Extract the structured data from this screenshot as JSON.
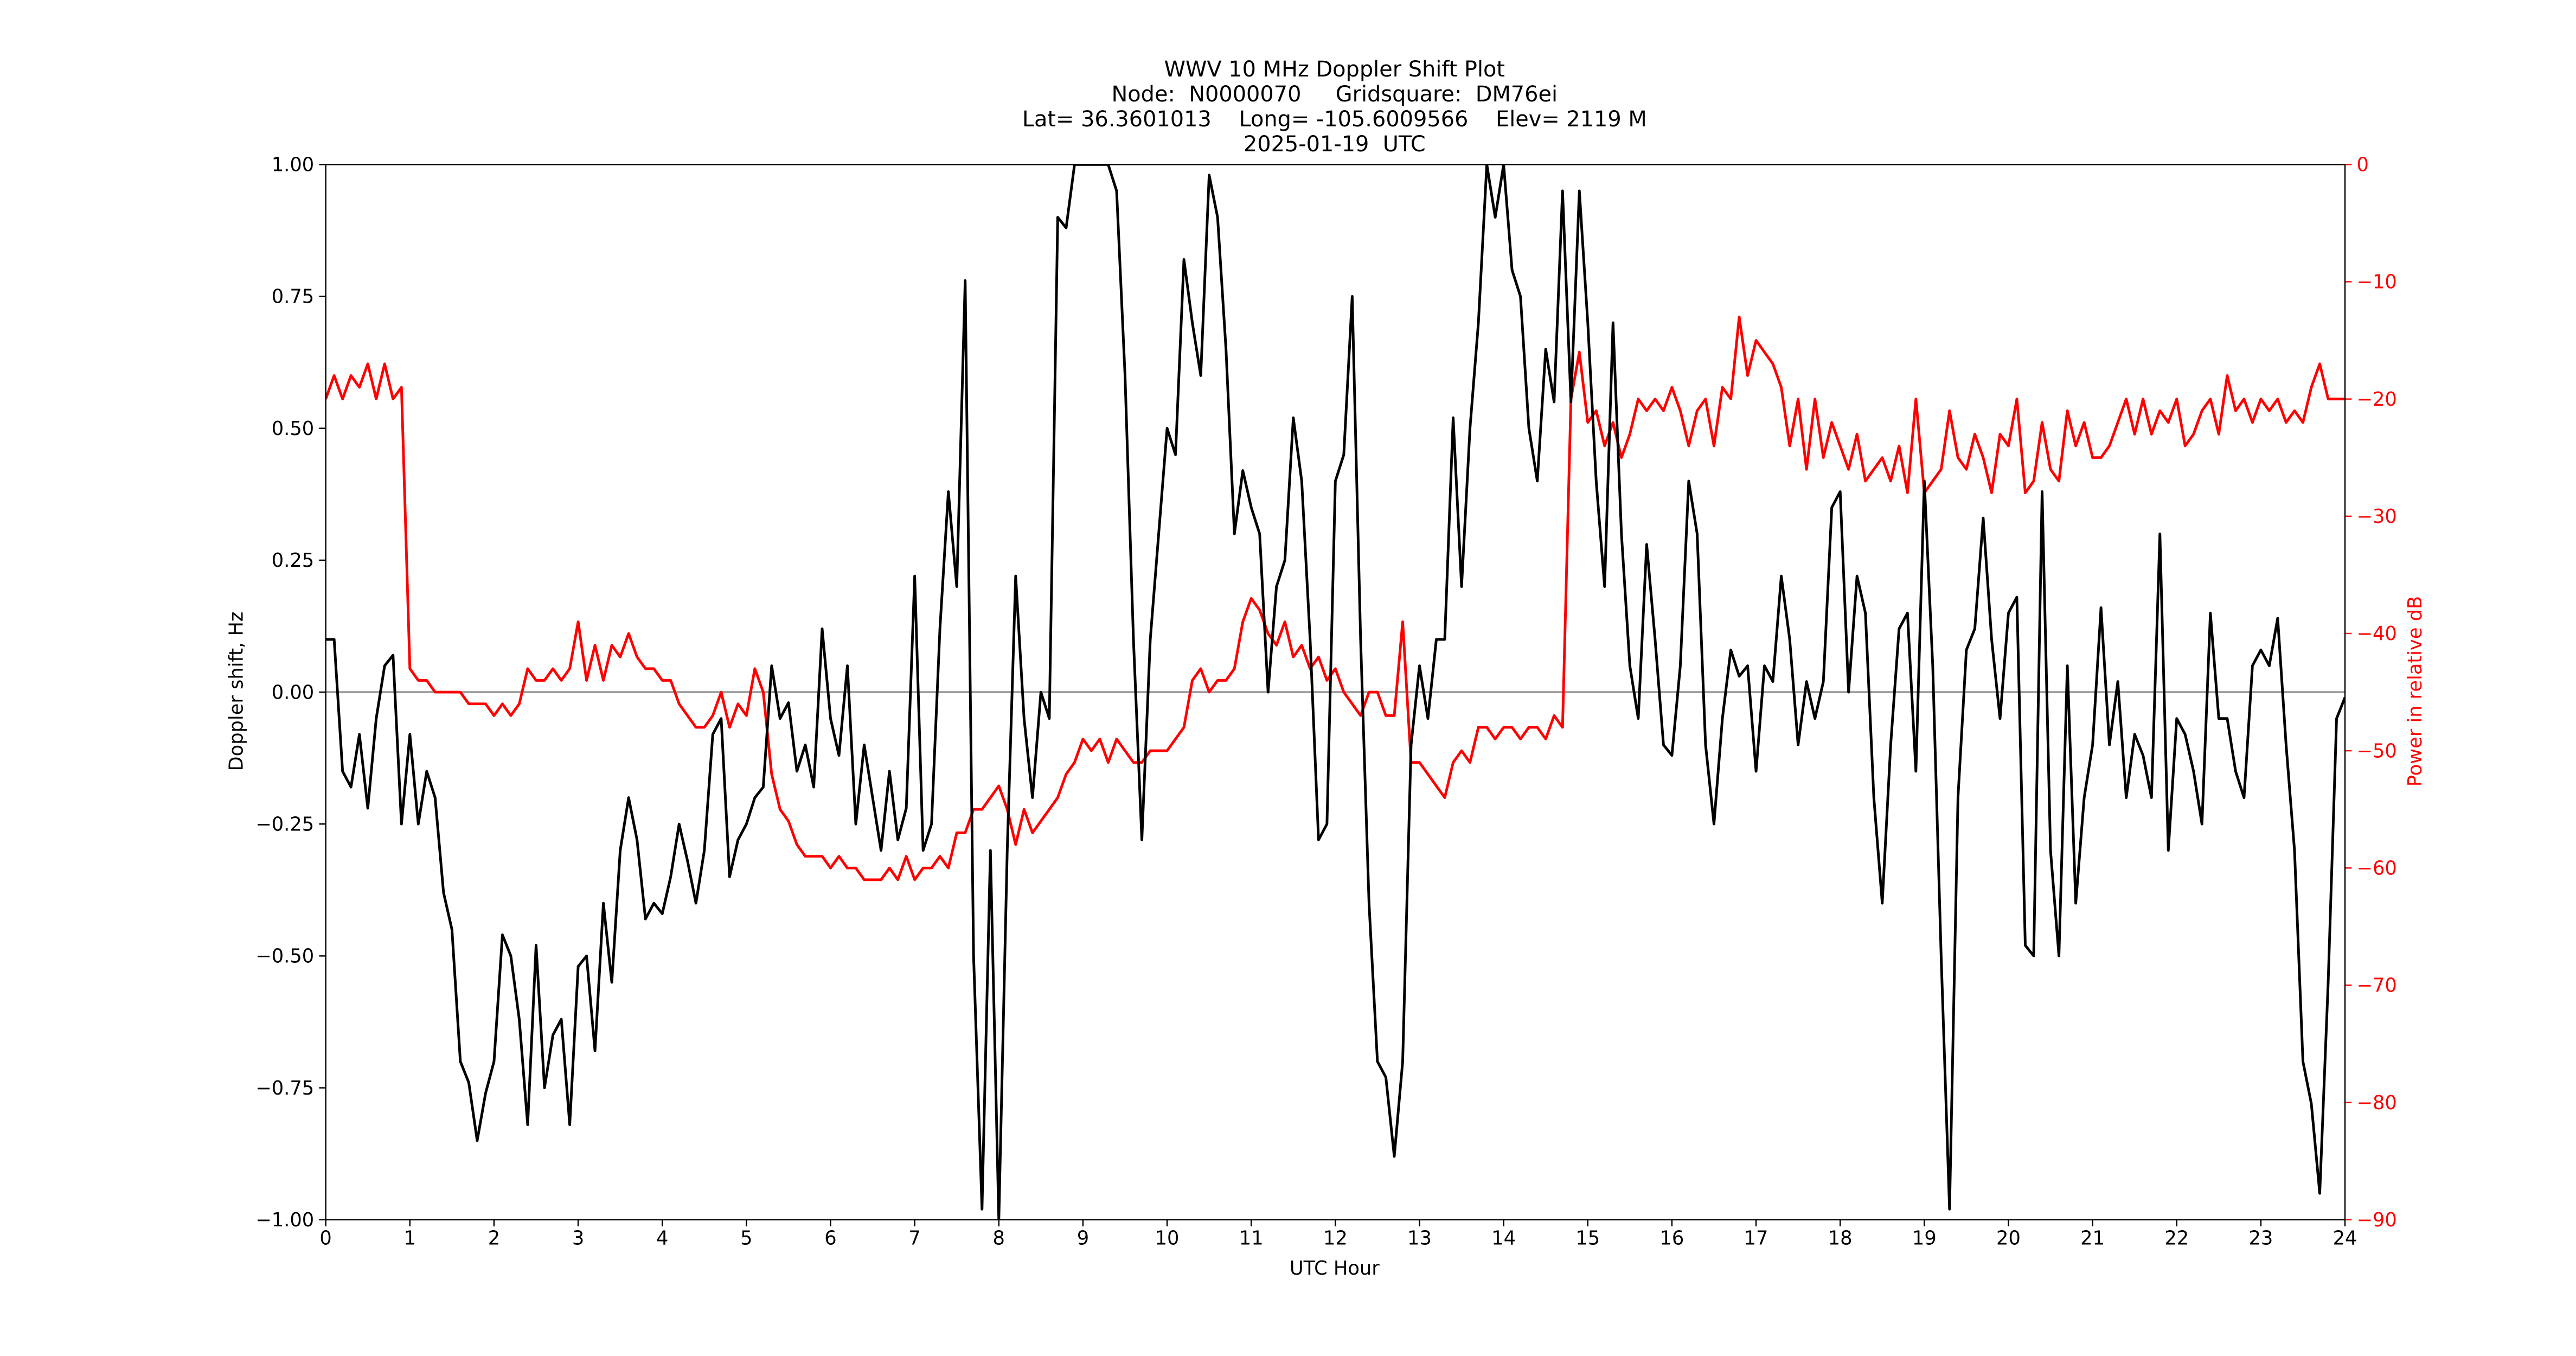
{
  "chart_data": {
    "type": "line",
    "title": "WWV 10 MHz Doppler Shift Plot",
    "subtitle": [
      "Node:  N0000070     Gridsquare:  DM76ei",
      "Lat= 36.3601013    Long= -105.6009566    Elev= 2119 M",
      "2025-01-19  UTC"
    ],
    "xlabel": "UTC Hour",
    "ylabel": "Doppler shift, Hz",
    "y2label": "Power in relative dB",
    "xlim": [
      0,
      24
    ],
    "ylim": [
      -1,
      1
    ],
    "y2lim": [
      -90,
      0
    ],
    "xticks": [
      0,
      1,
      2,
      3,
      4,
      5,
      6,
      7,
      8,
      9,
      10,
      11,
      12,
      13,
      14,
      15,
      16,
      17,
      18,
      19,
      20,
      21,
      22,
      23,
      24
    ],
    "yticks": [
      {
        "value": -1,
        "label": "−1.00"
      },
      {
        "value": -0.75,
        "label": "−0.75"
      },
      {
        "value": -0.5,
        "label": "−0.50"
      },
      {
        "value": -0.25,
        "label": "−0.25"
      },
      {
        "value": 0,
        "label": "0.00"
      },
      {
        "value": 0.25,
        "label": "0.25"
      },
      {
        "value": 0.5,
        "label": "0.50"
      },
      {
        "value": 0.75,
        "label": "0.75"
      },
      {
        "value": 1,
        "label": "1.00"
      }
    ],
    "y2ticks": [
      {
        "value": -90,
        "label": "−90"
      },
      {
        "value": -80,
        "label": "−80"
      },
      {
        "value": -70,
        "label": "−70"
      },
      {
        "value": -60,
        "label": "−60"
      },
      {
        "value": -50,
        "label": "−50"
      },
      {
        "value": -40,
        "label": "−40"
      },
      {
        "value": -30,
        "label": "−30"
      },
      {
        "value": -20,
        "label": "−20"
      },
      {
        "value": -10,
        "label": "−10"
      },
      0
    ],
    "y2color": "#ff0000",
    "reference_line": 0,
    "reference_color": "#999999",
    "x": [
      0,
      0.1,
      0.2,
      0.3,
      0.4,
      0.5,
      0.6,
      0.7,
      0.8,
      0.9,
      1,
      1.1,
      1.2,
      1.3,
      1.4,
      1.5,
      1.6,
      1.7,
      1.8,
      1.9,
      2,
      2.1,
      2.2,
      2.3,
      2.4,
      2.5,
      2.6,
      2.7,
      2.8,
      2.9,
      3,
      3.1,
      3.2,
      3.3,
      3.4,
      3.5,
      3.6,
      3.7,
      3.8,
      3.9,
      4,
      4.1,
      4.2,
      4.3,
      4.4,
      4.5,
      4.6,
      4.7,
      4.8,
      4.9,
      5,
      5.1,
      5.2,
      5.3,
      5.4,
      5.5,
      5.6,
      5.7,
      5.8,
      5.9,
      6,
      6.1,
      6.2,
      6.3,
      6.4,
      6.5,
      6.6,
      6.7,
      6.8,
      6.9,
      7,
      7.1,
      7.2,
      7.3,
      7.4,
      7.5,
      7.6,
      7.7,
      7.8,
      7.9,
      8,
      8.1,
      8.2,
      8.3,
      8.4,
      8.5,
      8.6,
      8.7,
      8.8,
      8.9,
      9,
      9.1,
      9.2,
      9.3,
      9.4,
      9.5,
      9.6,
      9.7,
      9.8,
      9.9,
      10,
      10.1,
      10.2,
      10.3,
      10.4,
      10.5,
      10.6,
      10.7,
      10.8,
      10.9,
      11,
      11.1,
      11.2,
      11.3,
      11.4,
      11.5,
      11.6,
      11.7,
      11.8,
      11.9,
      12,
      12.1,
      12.2,
      12.3,
      12.4,
      12.5,
      12.6,
      12.7,
      12.8,
      12.9,
      13,
      13.1,
      13.2,
      13.3,
      13.4,
      13.5,
      13.6,
      13.7,
      13.8,
      13.9,
      14,
      14.1,
      14.2,
      14.3,
      14.4,
      14.5,
      14.6,
      14.7,
      14.8,
      14.9,
      15,
      15.1,
      15.2,
      15.3,
      15.4,
      15.5,
      15.6,
      15.7,
      15.8,
      15.9,
      16,
      16.1,
      16.2,
      16.3,
      16.4,
      16.5,
      16.6,
      16.7,
      16.8,
      16.9,
      17,
      17.1,
      17.2,
      17.3,
      17.4,
      17.5,
      17.6,
      17.7,
      17.8,
      17.9,
      18,
      18.1,
      18.2,
      18.3,
      18.4,
      18.5,
      18.6,
      18.7,
      18.8,
      18.9,
      19,
      19.1,
      19.2,
      19.3,
      19.4,
      19.5,
      19.6,
      19.7,
      19.8,
      19.9,
      20,
      20.1,
      20.2,
      20.3,
      20.4,
      20.5,
      20.6,
      20.7,
      20.8,
      20.9,
      21,
      21.1,
      21.2,
      21.3,
      21.4,
      21.5,
      21.6,
      21.7,
      21.8,
      21.9,
      22,
      22.1,
      22.2,
      22.3,
      22.4,
      22.5,
      22.6,
      22.7,
      22.8,
      22.9,
      23,
      23.1,
      23.2,
      23.3,
      23.4,
      23.5,
      23.6,
      23.7,
      23.8,
      23.9,
      24
    ],
    "series": [
      {
        "color": "#000000",
        "values": [
          0.1,
          0.1,
          -0.15,
          -0.18,
          -0.08,
          -0.22,
          -0.05,
          0.05,
          0.07,
          -0.25,
          -0.08,
          -0.25,
          -0.15,
          -0.2,
          -0.38,
          -0.45,
          -0.7,
          -0.74,
          -0.85,
          -0.76,
          -0.7,
          -0.46,
          -0.5,
          -0.62,
          -0.82,
          -0.48,
          -0.75,
          -0.65,
          -0.62,
          -0.82,
          -0.52,
          -0.5,
          -0.68,
          -0.4,
          -0.55,
          -0.3,
          -0.2,
          -0.28,
          -0.43,
          -0.4,
          -0.42,
          -0.35,
          -0.25,
          -0.32,
          -0.4,
          -0.3,
          -0.08,
          -0.05,
          -0.35,
          -0.28,
          -0.25,
          -0.2,
          -0.18,
          0.05,
          -0.05,
          -0.02,
          -0.15,
          -0.1,
          -0.18,
          0.12,
          -0.05,
          -0.12,
          0.05,
          -0.25,
          -0.1,
          -0.2,
          -0.3,
          -0.15,
          -0.28,
          -0.22,
          0.22,
          -0.3,
          -0.25,
          0.12,
          0.38,
          0.2,
          0.78,
          -0.5,
          -0.98,
          -0.3,
          -1.0,
          -0.3,
          0.22,
          -0.05,
          -0.2,
          0.0,
          -0.05,
          0.9,
          0.88,
          1.0,
          1.0,
          1.0,
          1.0,
          1.0,
          0.95,
          0.6,
          0.1,
          -0.28,
          0.1,
          0.3,
          0.5,
          0.45,
          0.82,
          0.7,
          0.6,
          0.98,
          0.9,
          0.65,
          0.3,
          0.42,
          0.35,
          0.3,
          0.0,
          0.2,
          0.25,
          0.52,
          0.4,
          0.1,
          -0.28,
          -0.25,
          0.4,
          0.45,
          0.75,
          0.1,
          -0.4,
          -0.7,
          -0.73,
          -0.88,
          -0.7,
          -0.1,
          0.05,
          -0.05,
          0.1,
          0.1,
          0.52,
          0.2,
          0.5,
          0.7,
          1.0,
          0.9,
          1.0,
          0.8,
          0.75,
          0.5,
          0.4,
          0.65,
          0.55,
          0.95,
          0.55,
          0.95,
          0.7,
          0.4,
          0.2,
          0.7,
          0.3,
          0.05,
          -0.05,
          0.28,
          0.1,
          -0.1,
          -0.12,
          0.05,
          0.4,
          0.3,
          -0.1,
          -0.25,
          -0.05,
          0.08,
          0.03,
          0.05,
          -0.15,
          0.05,
          0.02,
          0.22,
          0.1,
          -0.1,
          0.02,
          -0.05,
          0.02,
          0.35,
          0.38,
          0.0,
          0.22,
          0.15,
          -0.2,
          -0.4,
          -0.1,
          0.12,
          0.15,
          -0.15,
          0.4,
          0.05,
          -0.5,
          -0.98,
          -0.2,
          0.08,
          0.12,
          0.33,
          0.1,
          -0.05,
          0.15,
          0.18,
          -0.48,
          -0.5,
          0.38,
          -0.3,
          -0.5,
          0.05,
          -0.4,
          -0.2,
          -0.1,
          0.16,
          -0.1,
          0.02,
          -0.2,
          -0.08,
          -0.12,
          -0.2,
          0.3,
          -0.3,
          -0.05,
          -0.08,
          -0.15,
          -0.25,
          0.15,
          -0.05,
          -0.05,
          -0.15,
          -0.2,
          0.05,
          0.08,
          0.05,
          0.14,
          -0.1,
          -0.3,
          -0.7,
          -0.78,
          -0.95,
          -0.55,
          -0.05,
          -0.01
        ]
      },
      {
        "color": "#ff0000",
        "axis": "y2",
        "values": [
          -20,
          -18,
          -20,
          -18,
          -19,
          -17,
          -20,
          -17,
          -20,
          -19,
          -43,
          -44,
          -44,
          -45,
          -45,
          -45,
          -45,
          -46,
          -46,
          -46,
          -47,
          -46,
          -47,
          -46,
          -43,
          -44,
          -44,
          -43,
          -44,
          -43,
          -39,
          -44,
          -41,
          -44,
          -41,
          -42,
          -40,
          -42,
          -43,
          -43,
          -44,
          -44,
          -46,
          -47,
          -48,
          -48,
          -47,
          -45,
          -48,
          -46,
          -47,
          -43,
          -45,
          -52,
          -55,
          -56,
          -58,
          -59,
          -59,
          -59,
          -60,
          -59,
          -60,
          -60,
          -61,
          -61,
          -61,
          -60,
          -61,
          -59,
          -61,
          -60,
          -60,
          -59,
          -60,
          -57,
          -57,
          -55,
          -55,
          -54,
          -53,
          -55,
          -58,
          -55,
          -57,
          -56,
          -55,
          -54,
          -52,
          -51,
          -49,
          -50,
          -49,
          -51,
          -49,
          -50,
          -51,
          -51,
          -50,
          -50,
          -50,
          -49,
          -48,
          -44,
          -43,
          -45,
          -44,
          -44,
          -43,
          -39,
          -37,
          -38,
          -40,
          -41,
          -39,
          -42,
          -41,
          -43,
          -42,
          -44,
          -43,
          -45,
          -46,
          -47,
          -45,
          -45,
          -47,
          -47,
          -39,
          -51,
          -51,
          -52,
          -53,
          -54,
          -51,
          -50,
          -51,
          -48,
          -48,
          -49,
          -48,
          -48,
          -49,
          -48,
          -48,
          -49,
          -47,
          -48,
          -20,
          -16,
          -22,
          -21,
          -24,
          -22,
          -25,
          -23,
          -20,
          -21,
          -20,
          -21,
          -19,
          -21,
          -24,
          -21,
          -20,
          -24,
          -19,
          -20,
          -13,
          -18,
          -15,
          -16,
          -17,
          -19,
          -24,
          -20,
          -26,
          -20,
          -25,
          -22,
          -24,
          -26,
          -23,
          -27,
          -26,
          -25,
          -27,
          -24,
          -28,
          -20,
          -28,
          -27,
          -26,
          -21,
          -25,
          -26,
          -23,
          -25,
          -28,
          -23,
          -24,
          -20,
          -28,
          -27,
          -22,
          -26,
          -27,
          -21,
          -24,
          -22,
          -25,
          -25,
          -24,
          -22,
          -20,
          -23,
          -20,
          -23,
          -21,
          -22,
          -20,
          -24,
          -23,
          -21,
          -20,
          -23,
          -18,
          -21,
          -20,
          -22,
          -20,
          -21,
          -20,
          -22,
          -21,
          -22,
          -19,
          -17,
          -20,
          -20,
          -20
        ]
      }
    ]
  }
}
